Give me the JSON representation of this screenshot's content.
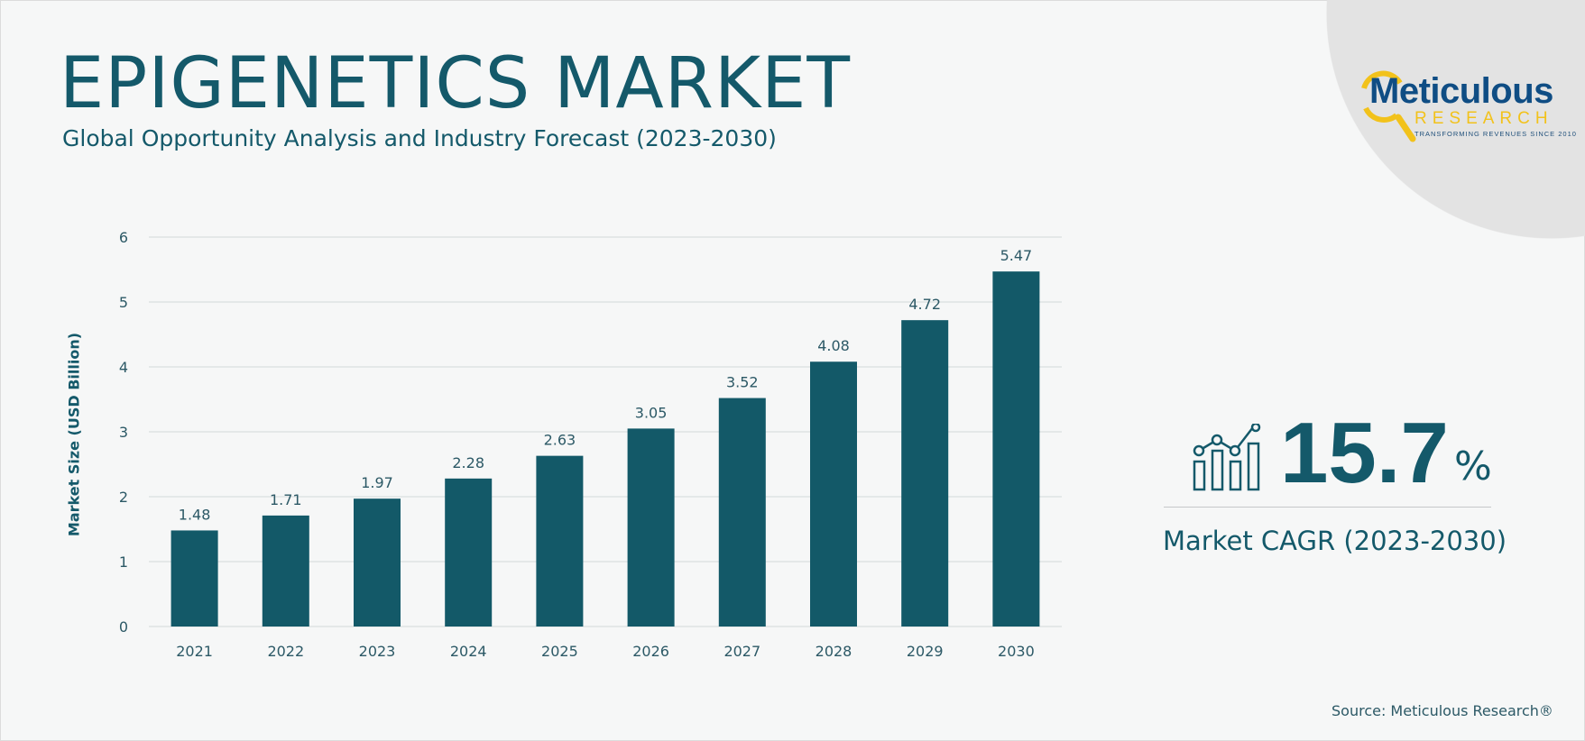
{
  "header": {
    "title": "EPIGENETICS MARKET",
    "subtitle": "Global Opportunity Analysis and Industry Forecast (2023-2030)"
  },
  "logo": {
    "name": "Meticulous",
    "sub": "RESEARCH",
    "tagline": "TRANSFORMING REVENUES SINCE 2010",
    "colors": {
      "primary": "#0f4d84",
      "accent": "#f2c21b"
    }
  },
  "chart_data": {
    "type": "bar",
    "title": "",
    "xlabel": "",
    "ylabel": "Market Size (USD Billion)",
    "categories": [
      "2021",
      "2022",
      "2023",
      "2024",
      "2025",
      "2026",
      "2027",
      "2028",
      "2029",
      "2030"
    ],
    "values": [
      1.48,
      1.71,
      1.97,
      2.28,
      2.63,
      3.05,
      3.52,
      4.08,
      4.72,
      5.47
    ],
    "data_labels": [
      "1.48",
      "1.71",
      "1.97",
      "2.28",
      "2.63",
      "3.05",
      "3.52",
      "4.08",
      "4.72",
      "5.47"
    ],
    "ylim": [
      0,
      6
    ],
    "yticks": [
      "0",
      "1",
      "2",
      "3",
      "4",
      "5",
      "6"
    ],
    "grid": true,
    "bar_color": "#135968"
  },
  "cagr": {
    "icon": "bar-chart-trend-icon",
    "value": "15.7",
    "unit": "%",
    "label": "Market CAGR (2023-2030)"
  },
  "source": "Source: Meticulous Research®"
}
